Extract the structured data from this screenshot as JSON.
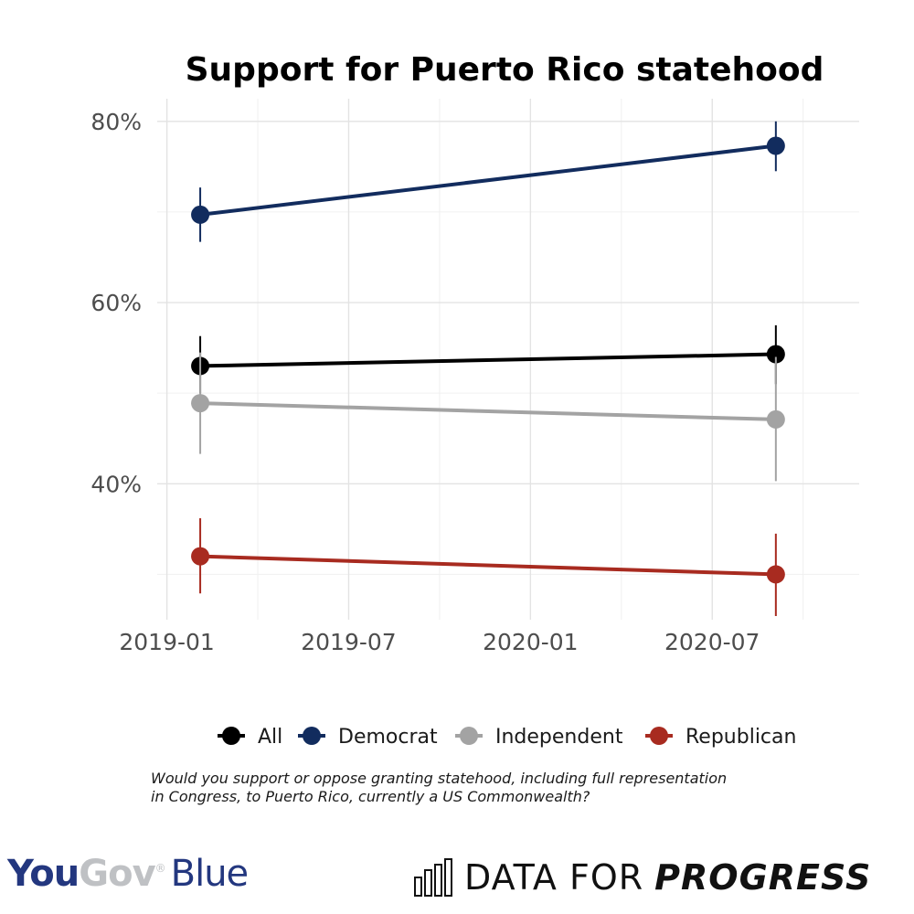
{
  "chart_data": {
    "type": "line",
    "title": "Support for Puerto Rico statehood",
    "xlabel": "",
    "ylabel": "",
    "x_ticks": [
      "2019-01",
      "2019-07",
      "2020-01",
      "2020-07"
    ],
    "y_ticks": [
      "40%",
      "60%",
      "80%"
    ],
    "ylim": [
      0.25,
      0.825
    ],
    "x": [
      "2019-02",
      "2020-09"
    ],
    "series": [
      {
        "name": "All",
        "color": "#000000",
        "values": [
          0.53,
          0.543
        ],
        "error_low": [
          0.5,
          0.51
        ],
        "error_high": [
          0.563,
          0.575
        ]
      },
      {
        "name": "Democrat",
        "color": "#122c5e",
        "values": [
          0.697,
          0.773
        ],
        "error_low": [
          0.667,
          0.745
        ],
        "error_high": [
          0.727,
          0.8
        ]
      },
      {
        "name": "Independent",
        "color": "#a3a3a3",
        "values": [
          0.489,
          0.471
        ],
        "error_low": [
          0.433,
          0.403
        ],
        "error_high": [
          0.545,
          0.54
        ]
      },
      {
        "name": "Republican",
        "color": "#a82b20",
        "values": [
          0.32,
          0.3
        ],
        "error_low": [
          0.279,
          0.254
        ],
        "error_high": [
          0.362,
          0.345
        ]
      }
    ],
    "grid": true,
    "legend": "bottom"
  },
  "caption": {
    "line1": "Would you support or oppose granting statehood, including full representation",
    "line2": "in Congress, to Puerto Rico, currently a US Commonwealth?"
  },
  "logos": {
    "yougov_you": "You",
    "yougov_gov": "Gov",
    "yougov_reg": "®",
    "yougov_blue": "Blue",
    "dfp_part1": "DATA FOR",
    "dfp_part2": "PROGRESS"
  }
}
